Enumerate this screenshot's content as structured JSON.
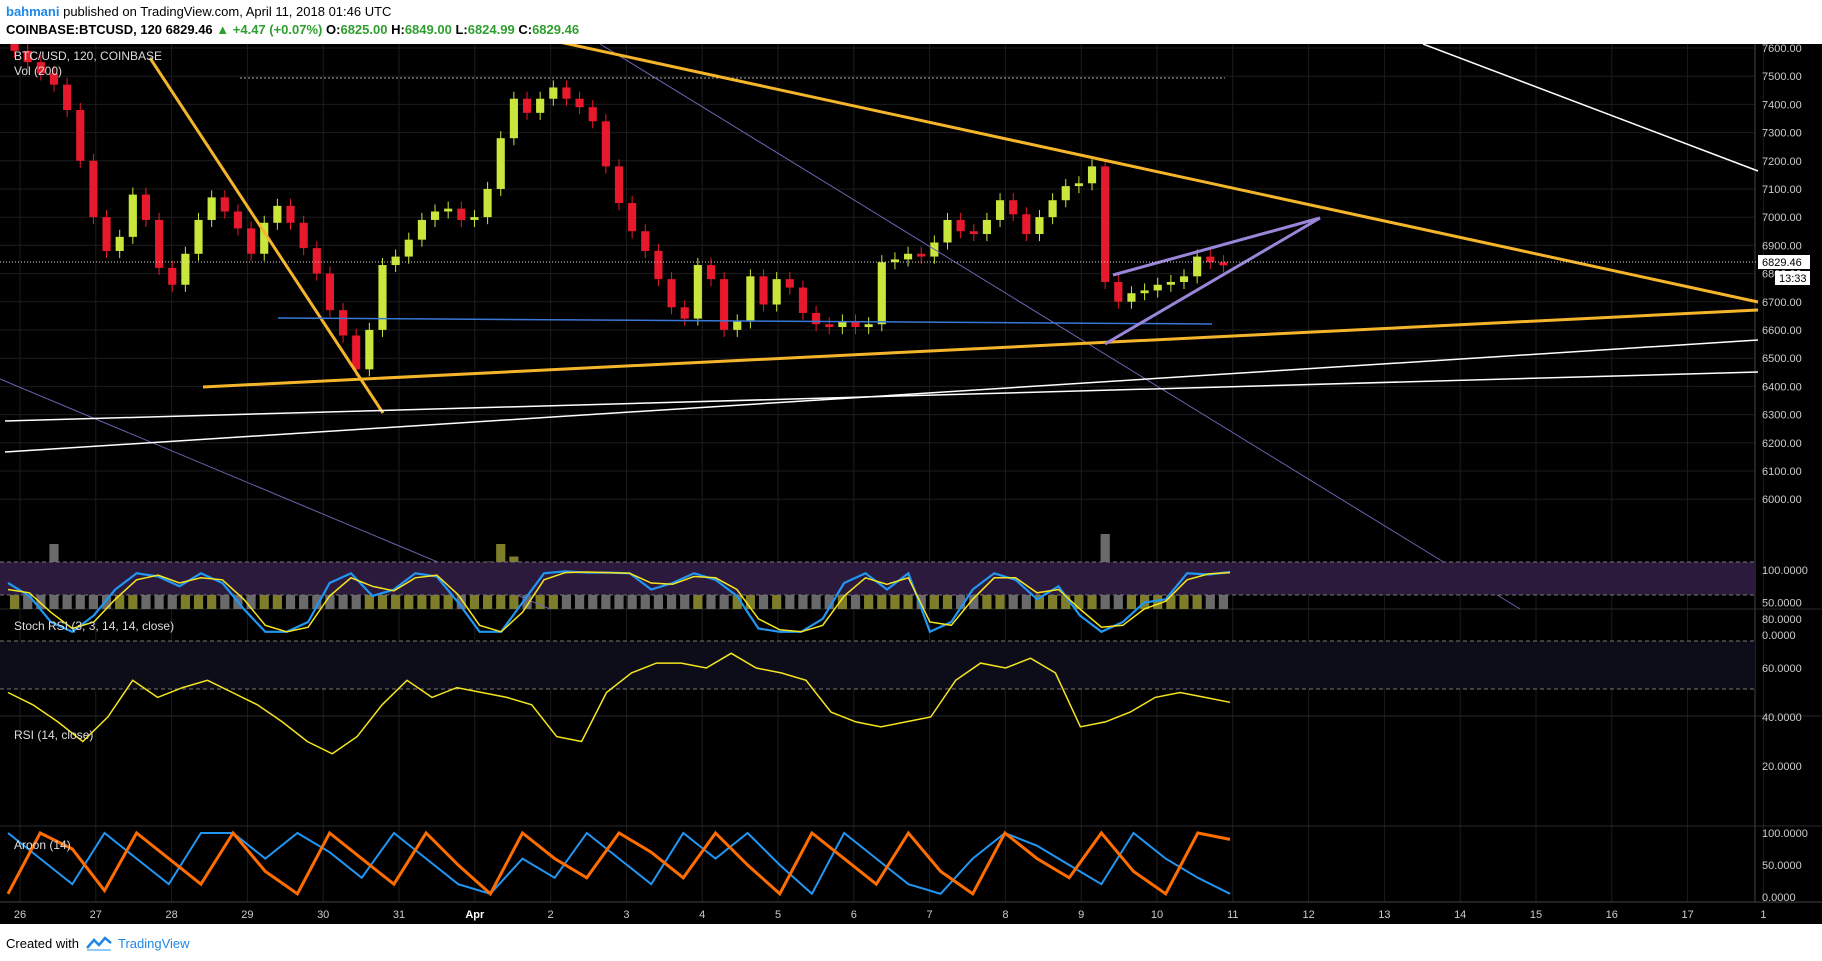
{
  "header": {
    "author": "bahmani",
    "published": "published on TradingView.com, April 11, 2018 01:46 UTC",
    "symbol": "COINBASE:BTCUSD, 120",
    "last": "6829.46",
    "change": "▲ +4.47 (+0.07%)",
    "ohlc_open_label": "O:",
    "ohlc_open": "6825.00",
    "ohlc_high_label": "H:",
    "ohlc_high": "6849.00",
    "ohlc_low_label": "L:",
    "ohlc_low": "6824.99",
    "ohlc_close_label": "C:",
    "ohlc_close": "6829.46"
  },
  "legend": {
    "main": "BTC/USD, 120, COINBASE",
    "vol": "Vol (200)",
    "stoch": "Stoch RSI (3, 3, 14, 14, close)",
    "rsi": "RSI (14, close)",
    "aroon": "Aroon (14)"
  },
  "price_label": "6829.46",
  "countdown_label": "13:33",
  "footer": {
    "created": "Created with",
    "brand": "TradingView"
  },
  "colors": {
    "up": "#c8e63c",
    "down": "#e8192c",
    "trend_yellow": "#f5b52a",
    "wedge_purple": "#9a86d8",
    "support_blue": "#3a78d8",
    "stoch_k": "#2196f3",
    "stoch_d": "#f5e51e",
    "rsi_line": "#f5e51e",
    "aroon_up": "#ff6d00",
    "aroon_down": "#2196f3"
  },
  "chart_data": {
    "type": "candlestick",
    "title": "BTC/USD, 120, COINBASE",
    "x_ticks": [
      "26",
      "27",
      "28",
      "29",
      "30",
      "31",
      "Apr",
      "2",
      "3",
      "4",
      "5",
      "6",
      "7",
      "8",
      "9",
      "10",
      "11",
      "12",
      "13",
      "14",
      "15",
      "16",
      "17",
      "1"
    ],
    "y_ticks": [
      "7600.00",
      "7500.00",
      "7400.00",
      "7300.00",
      "7200.00",
      "7100.00",
      "7000.00",
      "6900.00",
      "6800.00",
      "6700.00",
      "6600.00",
      "6500.00",
      "6400.00",
      "6300.00",
      "6200.00",
      "6100.00",
      "6000.00"
    ],
    "ylim": [
      5915,
      7620
    ],
    "current_price": 6829.46,
    "stoch_ticks": [
      "100.0000",
      "50.0000",
      "0.0000"
    ],
    "rsi_ticks": [
      "80.0000",
      "60.0000",
      "40.0000",
      "20.0000"
    ],
    "aroon_ticks": [
      "100.0000",
      "50.0000",
      "0.0000"
    ],
    "closes": [
      7590,
      7550,
      7510,
      7470,
      7380,
      7200,
      7000,
      6880,
      6930,
      7080,
      6990,
      6820,
      6760,
      6870,
      6990,
      7070,
      7020,
      6960,
      6870,
      6980,
      7040,
      6980,
      6890,
      6800,
      6670,
      6580,
      6460,
      6600,
      6830,
      6860,
      6920,
      6990,
      7020,
      7030,
      6990,
      7000,
      7100,
      7280,
      7420,
      7370,
      7420,
      7460,
      7420,
      7390,
      7340,
      7180,
      7050,
      6950,
      6880,
      6780,
      6680,
      6640,
      6830,
      6780,
      6600,
      6630,
      6790,
      6690,
      6780,
      6750,
      6660,
      6620,
      6610,
      6630,
      6610,
      6620,
      6840,
      6850,
      6870,
      6860,
      6910,
      6990,
      6950,
      6940,
      6990,
      7060,
      7010,
      6940,
      7000,
      7060,
      7110,
      7120,
      7180,
      6770,
      6700,
      6730,
      6740,
      6760,
      6770,
      6790,
      6860,
      6840,
      6829
    ],
    "volumes": [
      60,
      140,
      120,
      260,
      150,
      110,
      100,
      140,
      180,
      120,
      90,
      150,
      130,
      110,
      120,
      180,
      160,
      120,
      130,
      110,
      140,
      160,
      120,
      100,
      110,
      150,
      130,
      120,
      160,
      110,
      100,
      110,
      120,
      160,
      120,
      130,
      190,
      260,
      210,
      160,
      150,
      110,
      120,
      110,
      150,
      140,
      150,
      120,
      110,
      100,
      120,
      110,
      140,
      120,
      100,
      130,
      150,
      110,
      120,
      110,
      130,
      110,
      100,
      110,
      100,
      110,
      160,
      120,
      110,
      100,
      110,
      120,
      110,
      100,
      110,
      120,
      110,
      100,
      110,
      120,
      130,
      120,
      150,
      300,
      180,
      120,
      110,
      100,
      110,
      100,
      120,
      110,
      100
    ],
    "stoch_k": [
      80,
      60,
      20,
      5,
      30,
      70,
      95,
      90,
      75,
      95,
      80,
      40,
      5,
      5,
      20,
      80,
      95,
      60,
      70,
      95,
      90,
      50,
      5,
      5,
      50,
      95,
      98,
      96,
      96,
      95,
      70,
      80,
      95,
      85,
      60,
      10,
      5,
      5,
      25,
      80,
      95,
      70,
      95,
      5,
      20,
      70,
      95,
      85,
      55,
      75,
      30,
      5,
      20,
      50,
      55,
      95,
      93,
      97
    ],
    "stoch_d": [
      70,
      65,
      35,
      10,
      20,
      55,
      85,
      92,
      80,
      88,
      85,
      55,
      15,
      5,
      12,
      60,
      88,
      75,
      68,
      88,
      92,
      62,
      15,
      5,
      35,
      85,
      96,
      97,
      96,
      95,
      80,
      78,
      90,
      88,
      70,
      25,
      8,
      5,
      15,
      60,
      88,
      78,
      88,
      20,
      15,
      55,
      88,
      88,
      65,
      70,
      40,
      12,
      15,
      40,
      52,
      85,
      94,
      96
    ],
    "rsi": [
      50,
      45,
      38,
      30,
      40,
      55,
      48,
      52,
      55,
      50,
      45,
      38,
      30,
      25,
      32,
      45,
      55,
      48,
      52,
      50,
      48,
      45,
      32,
      30,
      50,
      58,
      62,
      62,
      60,
      66,
      60,
      58,
      55,
      42,
      38,
      36,
      38,
      40,
      55,
      62,
      60,
      64,
      58,
      36,
      38,
      42,
      48,
      50,
      48,
      46
    ],
    "aroon_up": [
      5,
      100,
      75,
      10,
      100,
      60,
      20,
      100,
      40,
      5,
      100,
      60,
      20,
      100,
      50,
      5,
      100,
      60,
      30,
      100,
      70,
      30,
      100,
      50,
      5,
      100,
      60,
      20,
      100,
      40,
      5,
      100,
      60,
      30,
      100,
      40,
      5,
      100,
      90
    ],
    "aroon_down": [
      100,
      60,
      20,
      100,
      60,
      20,
      100,
      100,
      60,
      100,
      70,
      30,
      100,
      60,
      20,
      5,
      60,
      30,
      100,
      60,
      20,
      100,
      60,
      100,
      50,
      5,
      100,
      60,
      20,
      5,
      60,
      100,
      80,
      50,
      20,
      100,
      60,
      30,
      5
    ]
  }
}
